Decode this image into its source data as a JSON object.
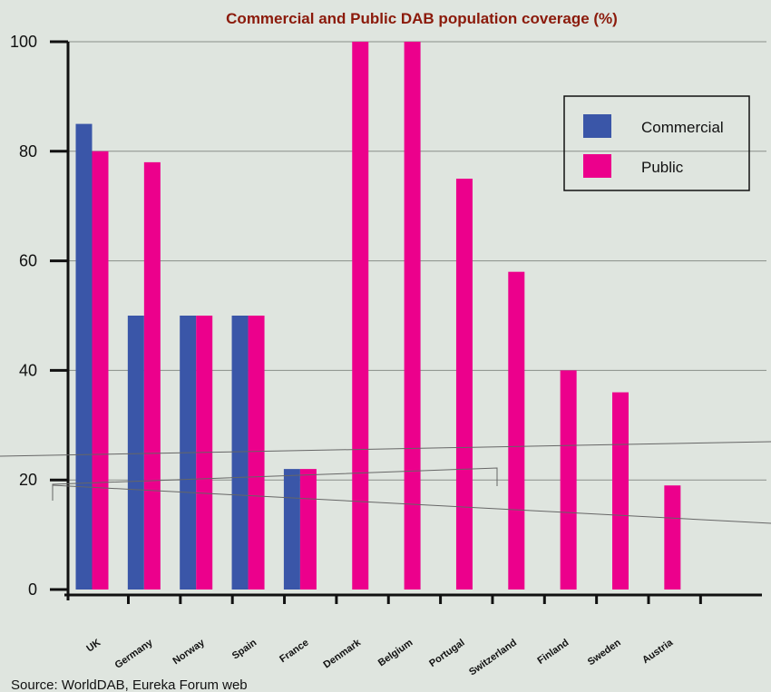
{
  "chart_data": {
    "type": "bar",
    "title": "Commercial and Public DAB population coverage (%)",
    "xlabel": "",
    "ylabel": "",
    "categories": [
      "UK",
      "Germany",
      "Norway",
      "Spain",
      "France",
      "Denmark",
      "Belgium",
      "Portugal",
      "Switzerland",
      "Finland",
      "Sweden",
      "Austria"
    ],
    "series": [
      {
        "name": "Commercial",
        "color": "#3a56a8",
        "values": [
          85,
          50,
          50,
          50,
          22,
          null,
          null,
          null,
          null,
          null,
          null,
          null
        ]
      },
      {
        "name": "Public",
        "color": "#ec008c",
        "values": [
          80,
          78,
          50,
          50,
          22,
          100,
          100,
          75,
          58,
          40,
          36,
          19
        ]
      }
    ],
    "ylim": [
      0,
      100
    ],
    "yticks": [
      0,
      20,
      40,
      60,
      80,
      100
    ],
    "grid": true,
    "legend": "top-right",
    "source": "Source: WorldDAB, Eureka Forum web"
  }
}
